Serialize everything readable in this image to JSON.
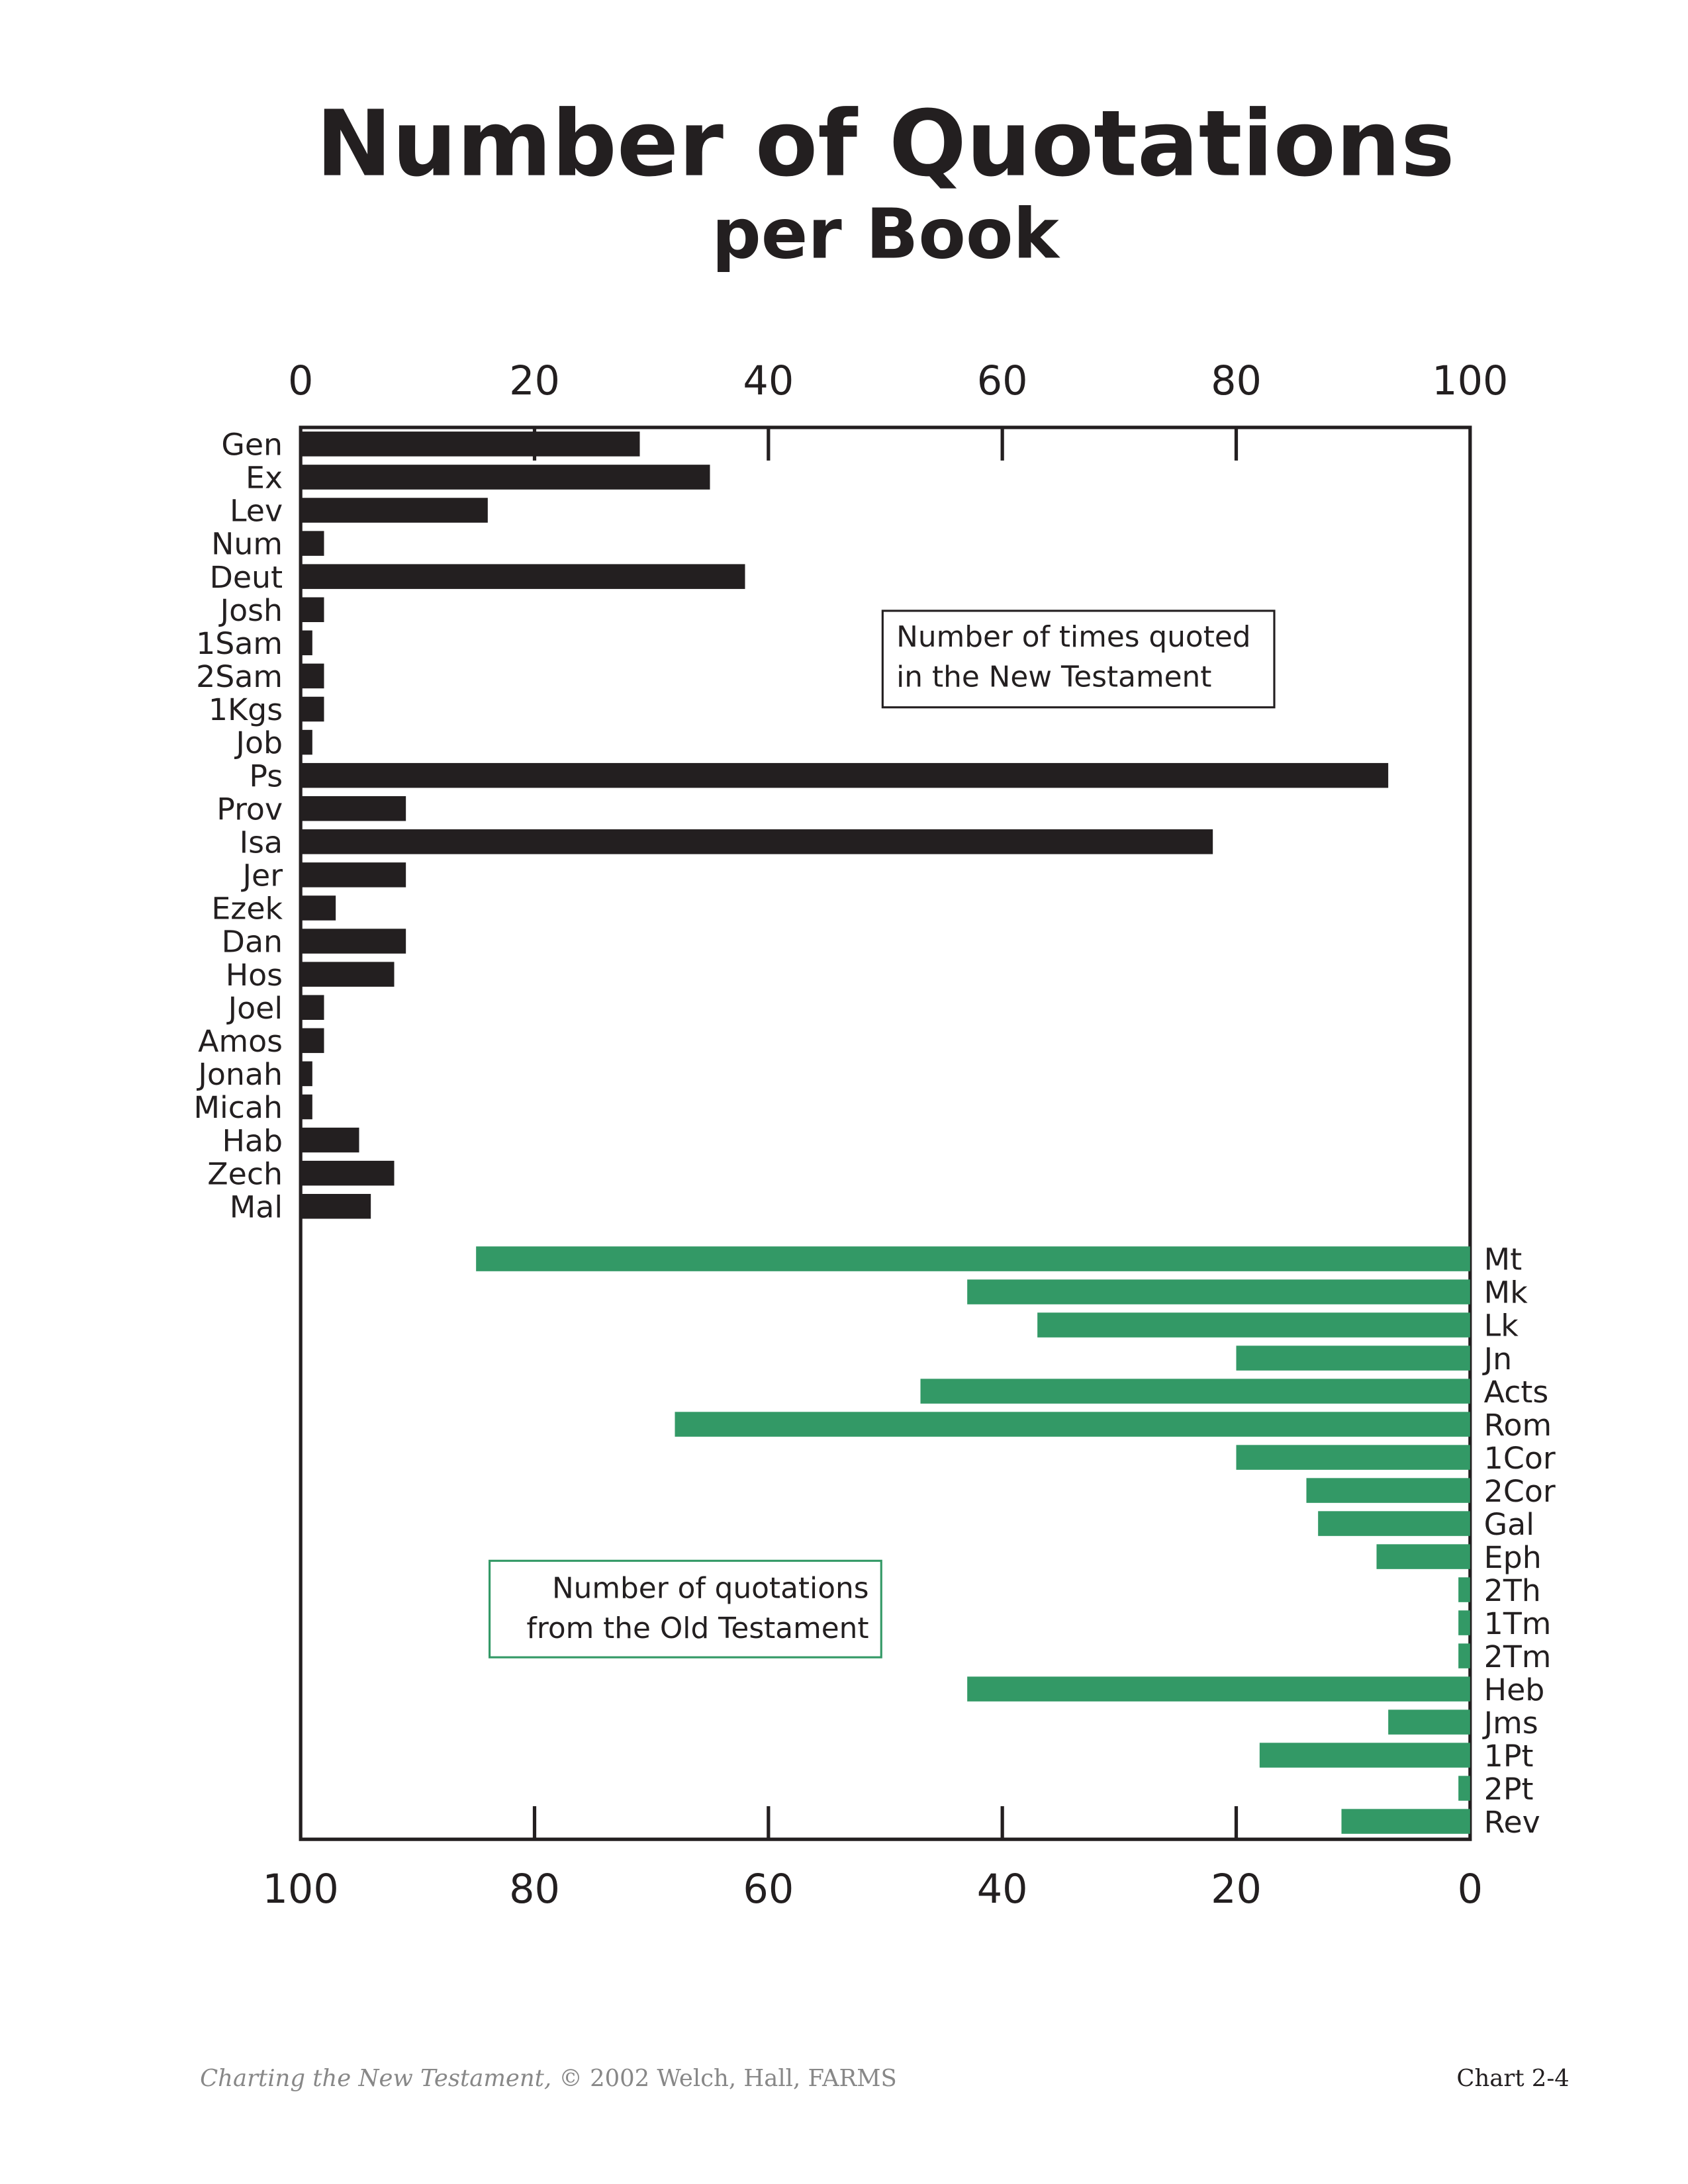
{
  "chart_data": {
    "type": "bar",
    "title": "Number of Quotations",
    "subtitle": "per Book",
    "top_axis": {
      "ticks": [
        "0",
        "20",
        "40",
        "60",
        "80",
        "100"
      ],
      "range": [
        0,
        100
      ],
      "direction": "left-to-right"
    },
    "bottom_axis": {
      "ticks": [
        "100",
        "80",
        "60",
        "40",
        "20",
        "0"
      ],
      "range": [
        100,
        0
      ],
      "direction": "right-to-left"
    },
    "grid": false,
    "series": [
      {
        "name": "Number of times quoted in the New Testament",
        "legend_lines": [
          "Number of times quoted",
          "in the New Testament"
        ],
        "color": "#231f20",
        "categories": [
          "Gen",
          "Ex",
          "Lev",
          "Num",
          "Deut",
          "Josh",
          "1Sam",
          "2Sam",
          "1Kgs",
          "Job",
          "Ps",
          "Prov",
          "Isa",
          "Jer",
          "Ezek",
          "Dan",
          "Hos",
          "Joel",
          "Amos",
          "Jonah",
          "Micah",
          "Hab",
          "Zech",
          "Mal"
        ],
        "values": [
          29,
          35,
          16,
          2,
          38,
          2,
          1,
          2,
          2,
          1,
          93,
          9,
          78,
          9,
          3,
          9,
          8,
          2,
          2,
          1,
          1,
          5,
          8,
          6
        ]
      },
      {
        "name": "Number of quotations from the Old Testament",
        "legend_lines": [
          "Number of quotations",
          "from the Old Testament"
        ],
        "color": "#339966",
        "categories": [
          "Mt",
          "Mk",
          "Lk",
          "Jn",
          "Acts",
          "Rom",
          "1Cor",
          "2Cor",
          "Gal",
          "Eph",
          "2Th",
          "1Tm",
          "2Tm",
          "Heb",
          "Jms",
          "1Pt",
          "2Pt",
          "Rev"
        ],
        "values": [
          85,
          43,
          37,
          20,
          47,
          68,
          20,
          14,
          13,
          8,
          1,
          1,
          1,
          43,
          7,
          18,
          1,
          11
        ]
      }
    ]
  },
  "footer": {
    "source_italic": "Charting the New Testament,",
    "source_rest": " © 2002 Welch, Hall, FARMS",
    "chart_number": "Chart 2-4"
  }
}
